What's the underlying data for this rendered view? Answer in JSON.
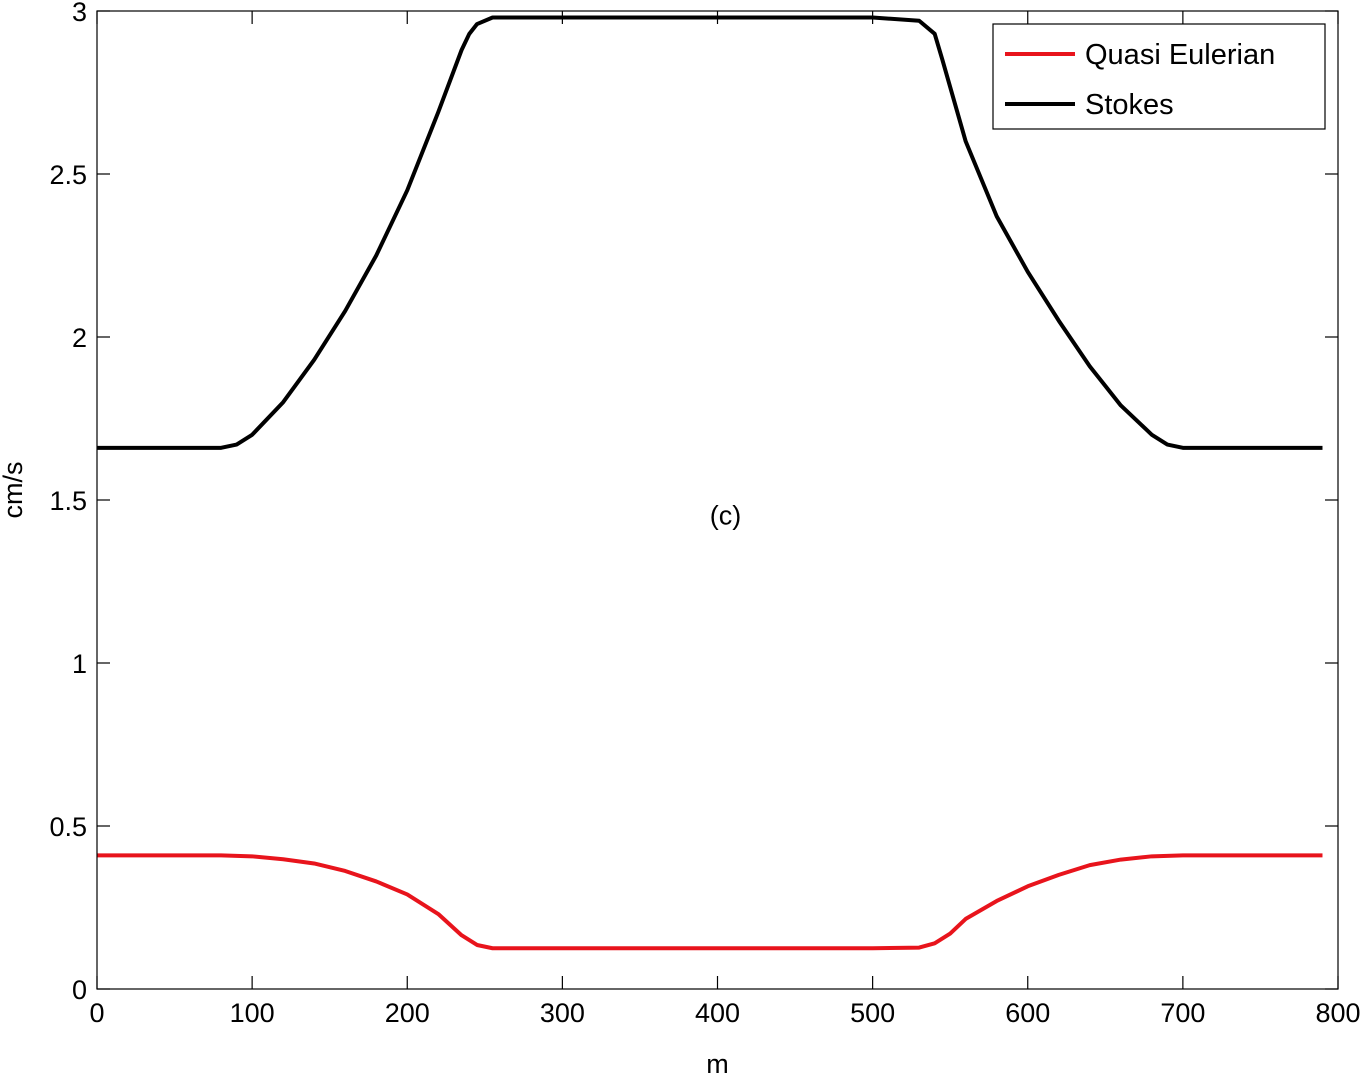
{
  "chart_data": {
    "type": "line",
    "title": "",
    "xlabel": "m",
    "ylabel": "cm/s",
    "xlim": [
      0,
      800
    ],
    "ylim": [
      0,
      3
    ],
    "grid": false,
    "legend_position": "top-right",
    "x_ticks": [
      0,
      100,
      200,
      300,
      400,
      500,
      600,
      700,
      800
    ],
    "x_tick_labels": [
      "0",
      "100",
      "200",
      "300",
      "400",
      "500",
      "600",
      "700",
      "800"
    ],
    "y_ticks": [
      0,
      0.5,
      1,
      1.5,
      2,
      2.5,
      3
    ],
    "y_tick_labels": [
      "0",
      "0.5",
      "1",
      "1.5",
      "2",
      "2.5",
      "3"
    ],
    "annotations": [
      {
        "text": "(c)",
        "x": 395,
        "y": 1.48
      }
    ],
    "series": [
      {
        "name": "Quasi Eulerian",
        "color": "#e8141c",
        "x": [
          0,
          80,
          100,
          120,
          140,
          160,
          180,
          200,
          220,
          235,
          245,
          255,
          300,
          400,
          500,
          530,
          540,
          550,
          560,
          580,
          600,
          620,
          640,
          660,
          680,
          700,
          720,
          790
        ],
        "y": [
          0.41,
          0.41,
          0.407,
          0.398,
          0.385,
          0.362,
          0.33,
          0.29,
          0.23,
          0.165,
          0.135,
          0.125,
          0.125,
          0.125,
          0.125,
          0.127,
          0.14,
          0.17,
          0.215,
          0.27,
          0.315,
          0.35,
          0.38,
          0.397,
          0.407,
          0.41,
          0.41,
          0.41
        ]
      },
      {
        "name": "Stokes",
        "color": "#000000",
        "x": [
          0,
          20,
          40,
          60,
          80,
          90,
          100,
          120,
          140,
          160,
          180,
          200,
          220,
          235,
          240,
          245,
          255,
          300,
          400,
          500,
          530,
          540,
          545,
          560,
          580,
          600,
          620,
          640,
          660,
          680,
          690,
          700,
          720,
          790
        ],
        "y": [
          1.66,
          1.66,
          1.66,
          1.66,
          1.66,
          1.67,
          1.7,
          1.8,
          1.93,
          2.08,
          2.25,
          2.45,
          2.69,
          2.88,
          2.93,
          2.96,
          2.98,
          2.98,
          2.98,
          2.98,
          2.97,
          2.93,
          2.85,
          2.6,
          2.37,
          2.2,
          2.05,
          1.91,
          1.79,
          1.7,
          1.67,
          1.66,
          1.66,
          1.66
        ]
      }
    ]
  }
}
